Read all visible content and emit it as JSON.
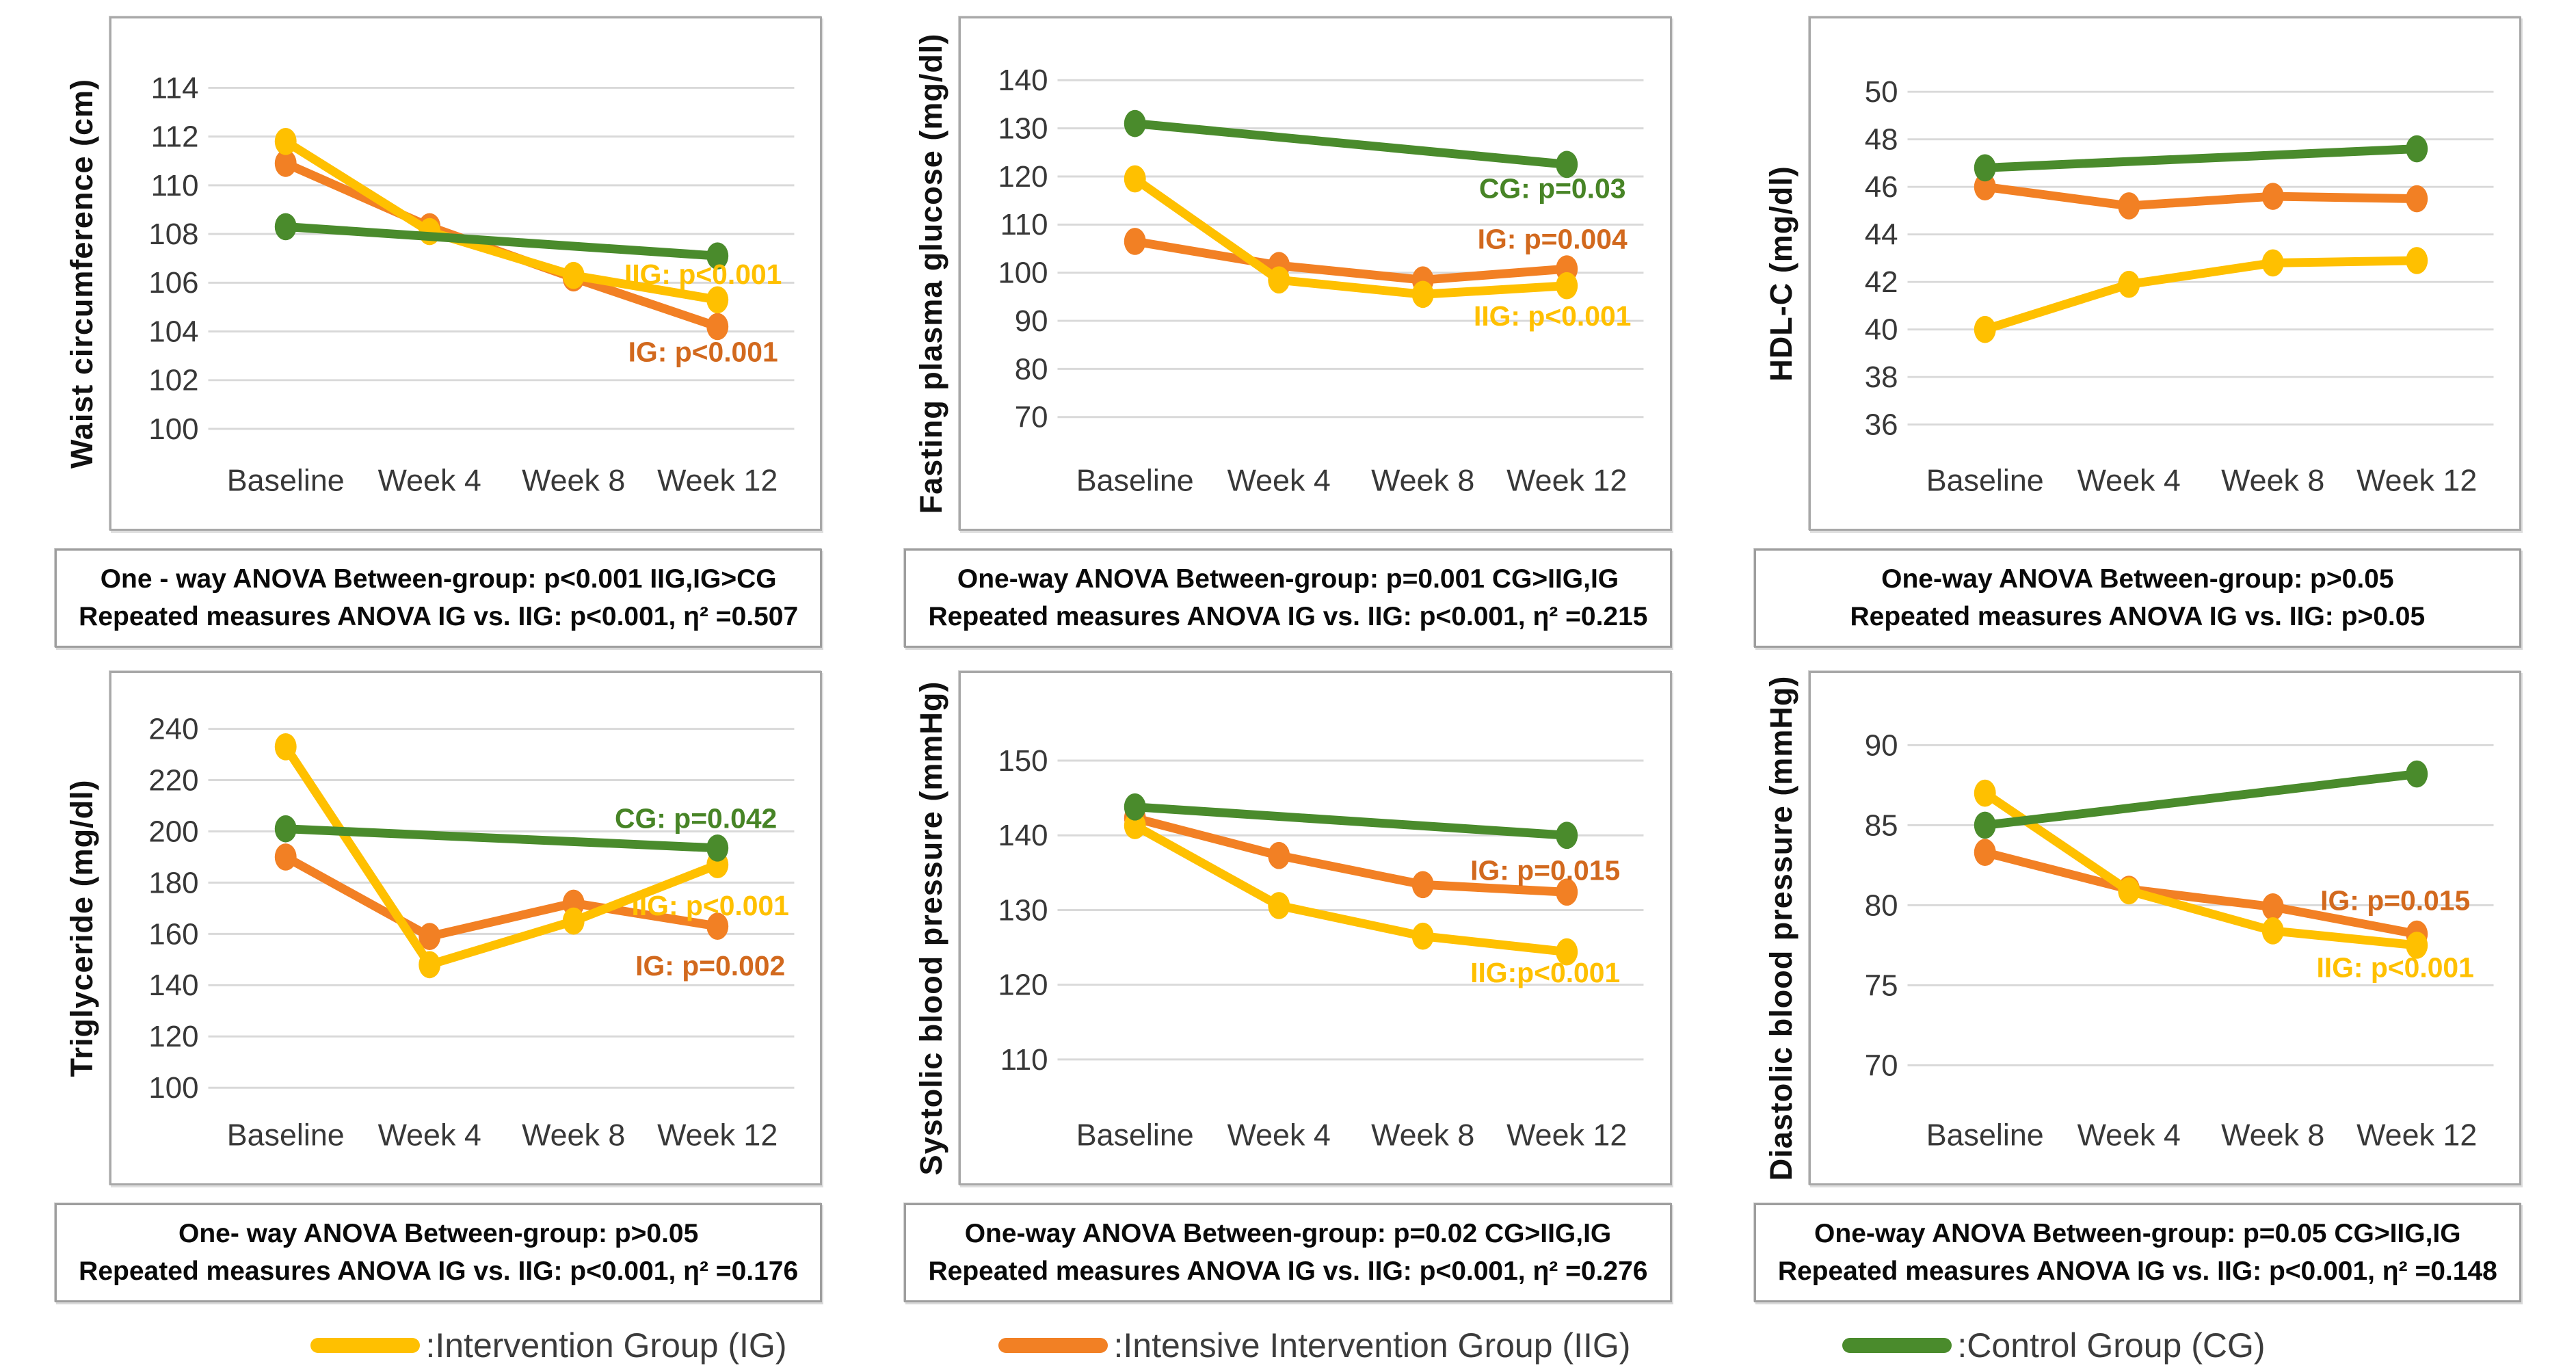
{
  "legend": [
    {
      "label": ":Intervention Group (IG)",
      "color": "#FFC000"
    },
    {
      "label": ":Intensive Intervention Group (IIG)",
      "color": "#F28024"
    },
    {
      "label": ":Control Group (CG)",
      "color": "#4A8B2C"
    }
  ],
  "chart_data": [
    {
      "type": "line",
      "ylabel": "Waist circumference (cm)",
      "categories": [
        "Baseline",
        "Week 4",
        "Week 8",
        "Week 12"
      ],
      "yticks": [
        100,
        102,
        104,
        106,
        108,
        110,
        112,
        114
      ],
      "ymin": 99.3,
      "ymax": 115.4,
      "series": [
        {
          "name": "Intensive Intervention Group (IIG)",
          "color": "#F28024",
          "values": [
            110.9,
            108.3,
            106.2,
            104.2
          ]
        },
        {
          "name": "Intervention Group (IG)",
          "color": "#FFC000",
          "values": [
            111.8,
            108.1,
            106.3,
            105.3
          ]
        },
        {
          "name": "Control Group (CG)",
          "color": "#4A8B2C",
          "values": [
            108.3,
            null,
            null,
            107.1
          ]
        }
      ],
      "annotations": [
        {
          "text": "IIG: p<0.001",
          "color": "#FFC000",
          "xi": 2.9,
          "value": 106.35
        },
        {
          "text": "IG: p<0.001",
          "color": "#D2691E",
          "xi": 2.9,
          "value": 103.15
        }
      ],
      "caption": [
        "One - way ANOVA Between-group: p<0.001 IIG,IG>CG",
        "Repeated measures ANOVA IG vs. IIG: p<0.001, η² =0.507"
      ]
    },
    {
      "type": "line",
      "ylabel": "Fasting plasma glucose (mg/dl)",
      "categories": [
        "Baseline",
        "Week 4",
        "Week 8",
        "Week 12"
      ],
      "yticks": [
        70,
        80,
        90,
        100,
        110,
        120,
        130,
        140
      ],
      "ymin": 64,
      "ymax": 145.5,
      "series": [
        {
          "name": "Intensive Intervention Group (IIG)",
          "color": "#F28024",
          "values": [
            106.5,
            101.5,
            98.5,
            100.8
          ]
        },
        {
          "name": "Intervention Group (IG)",
          "color": "#FFC000",
          "values": [
            119.5,
            98.5,
            95.5,
            97.3
          ]
        },
        {
          "name": "Control Group (CG)",
          "color": "#4A8B2C",
          "values": [
            131,
            null,
            null,
            122.5
          ]
        }
      ],
      "annotations": [
        {
          "text": "CG: p=0.03",
          "color": "#478426",
          "xi": 2.9,
          "value": 117.5
        },
        {
          "text": "IG: p=0.004",
          "color": "#D2691E",
          "xi": 2.9,
          "value": 107
        },
        {
          "text": "IIG: p<0.001",
          "color": "#FFC000",
          "xi": 2.9,
          "value": 91
        }
      ],
      "caption": [
        "One-way ANOVA Between-group: p=0.001 CG>IIG,IG",
        "Repeated measures ANOVA IG vs. IIG: p<0.001, η² =0.215"
      ]
    },
    {
      "type": "line",
      "ylabel": "HDL-C (mg/dl)",
      "categories": [
        "Baseline",
        "Week 4",
        "Week 8",
        "Week 12"
      ],
      "yticks": [
        36,
        38,
        40,
        42,
        44,
        46,
        48,
        50
      ],
      "ymin": 35.1,
      "ymax": 51.6,
      "series": [
        {
          "name": "Intensive Intervention Group (IIG)",
          "color": "#F28024",
          "values": [
            46.0,
            45.2,
            45.6,
            45.5
          ]
        },
        {
          "name": "Intervention Group (IG)",
          "color": "#FFC000",
          "values": [
            40.0,
            41.9,
            42.8,
            42.9
          ]
        },
        {
          "name": "Control Group (CG)",
          "color": "#4A8B2C",
          "values": [
            46.8,
            null,
            null,
            47.6
          ]
        }
      ],
      "annotations": [],
      "caption": [
        "One-way ANOVA Between-group: p>0.05",
        "Repeated measures ANOVA IG vs. IIG: p>0.05"
      ]
    },
    {
      "type": "line",
      "ylabel": "Triglyceride (mg/dl)",
      "categories": [
        "Baseline",
        "Week 4",
        "Week 8",
        "Week 12"
      ],
      "yticks": [
        100,
        120,
        140,
        160,
        180,
        200,
        220,
        240
      ],
      "ymin": 95,
      "ymax": 248,
      "series": [
        {
          "name": "Intensive Intervention Group (IIG)",
          "color": "#F28024",
          "values": [
            190,
            159,
            172,
            163
          ]
        },
        {
          "name": "Intervention Group (IG)",
          "color": "#FFC000",
          "values": [
            233,
            148,
            165,
            187
          ]
        },
        {
          "name": "Control Group (CG)",
          "color": "#4A8B2C",
          "values": [
            201,
            null,
            null,
            193.5
          ]
        }
      ],
      "annotations": [
        {
          "text": "CG: p=0.042",
          "color": "#478426",
          "xi": 2.85,
          "value": 205
        },
        {
          "text": "IIG: p<0.001",
          "color": "#FFC000",
          "xi": 2.95,
          "value": 171
        },
        {
          "text": "IG: p=0.002",
          "color": "#D2691E",
          "xi": 2.95,
          "value": 147.5
        }
      ],
      "caption": [
        "One- way ANOVA Between-group: p>0.05",
        "Repeated measures ANOVA IG vs. IIG: p<0.001, η² =0.176"
      ]
    },
    {
      "type": "line",
      "ylabel": "Systolic blood pressure (mmHg)",
      "categories": [
        "Baseline",
        "Week 4",
        "Week 8",
        "Week 12"
      ],
      "yticks": [
        110,
        120,
        130,
        140,
        150
      ],
      "ymin": 104.5,
      "ymax": 157,
      "series": [
        {
          "name": "Intensive Intervention Group (IIG)",
          "color": "#F28024",
          "values": [
            142.3,
            137.3,
            133.4,
            132.4
          ]
        },
        {
          "name": "Intervention Group (IG)",
          "color": "#FFC000",
          "values": [
            141.3,
            130.6,
            126.5,
            124.4
          ]
        },
        {
          "name": "Control Group (CG)",
          "color": "#4A8B2C",
          "values": [
            143.8,
            null,
            null,
            140.0
          ]
        }
      ],
      "annotations": [
        {
          "text": "IG: p=0.015",
          "color": "#D2691E",
          "xi": 2.85,
          "value": 135.3
        },
        {
          "text": "IIG:p<0.001",
          "color": "#FFC000",
          "xi": 2.85,
          "value": 121.6
        }
      ],
      "caption": [
        "One-way ANOVA Between-group: p=0.02 CG>IIG,IG",
        "Repeated measures ANOVA IG vs. IIG: p<0.001, η² =0.276"
      ]
    },
    {
      "type": "line",
      "ylabel": "Diastolic blood pressure (mmHg)",
      "categories": [
        "Baseline",
        "Week 4",
        "Week 8",
        "Week 12"
      ],
      "yticks": [
        70,
        75,
        80,
        85,
        90
      ],
      "ymin": 67.8,
      "ymax": 92.3,
      "series": [
        {
          "name": "Intensive Intervention Group (IIG)",
          "color": "#F28024",
          "values": [
            83.3,
            81.0,
            79.9,
            78.2
          ]
        },
        {
          "name": "Intervention Group (IG)",
          "color": "#FFC000",
          "values": [
            87.0,
            80.9,
            78.4,
            77.5
          ]
        },
        {
          "name": "Control Group (CG)",
          "color": "#4A8B2C",
          "values": [
            85.0,
            null,
            null,
            88.2
          ]
        }
      ],
      "annotations": [
        {
          "text": "IG: p=0.015",
          "color": "#D2691E",
          "xi": 2.85,
          "value": 80.3
        },
        {
          "text": "IIG: p<0.001",
          "color": "#FFC000",
          "xi": 2.85,
          "value": 76.1
        }
      ],
      "caption": [
        "One-way ANOVA Between-group: p=0.05 CG>IIG,IG",
        "Repeated measures ANOVA IG vs. IIG: p<0.001, η² =0.148"
      ]
    }
  ]
}
